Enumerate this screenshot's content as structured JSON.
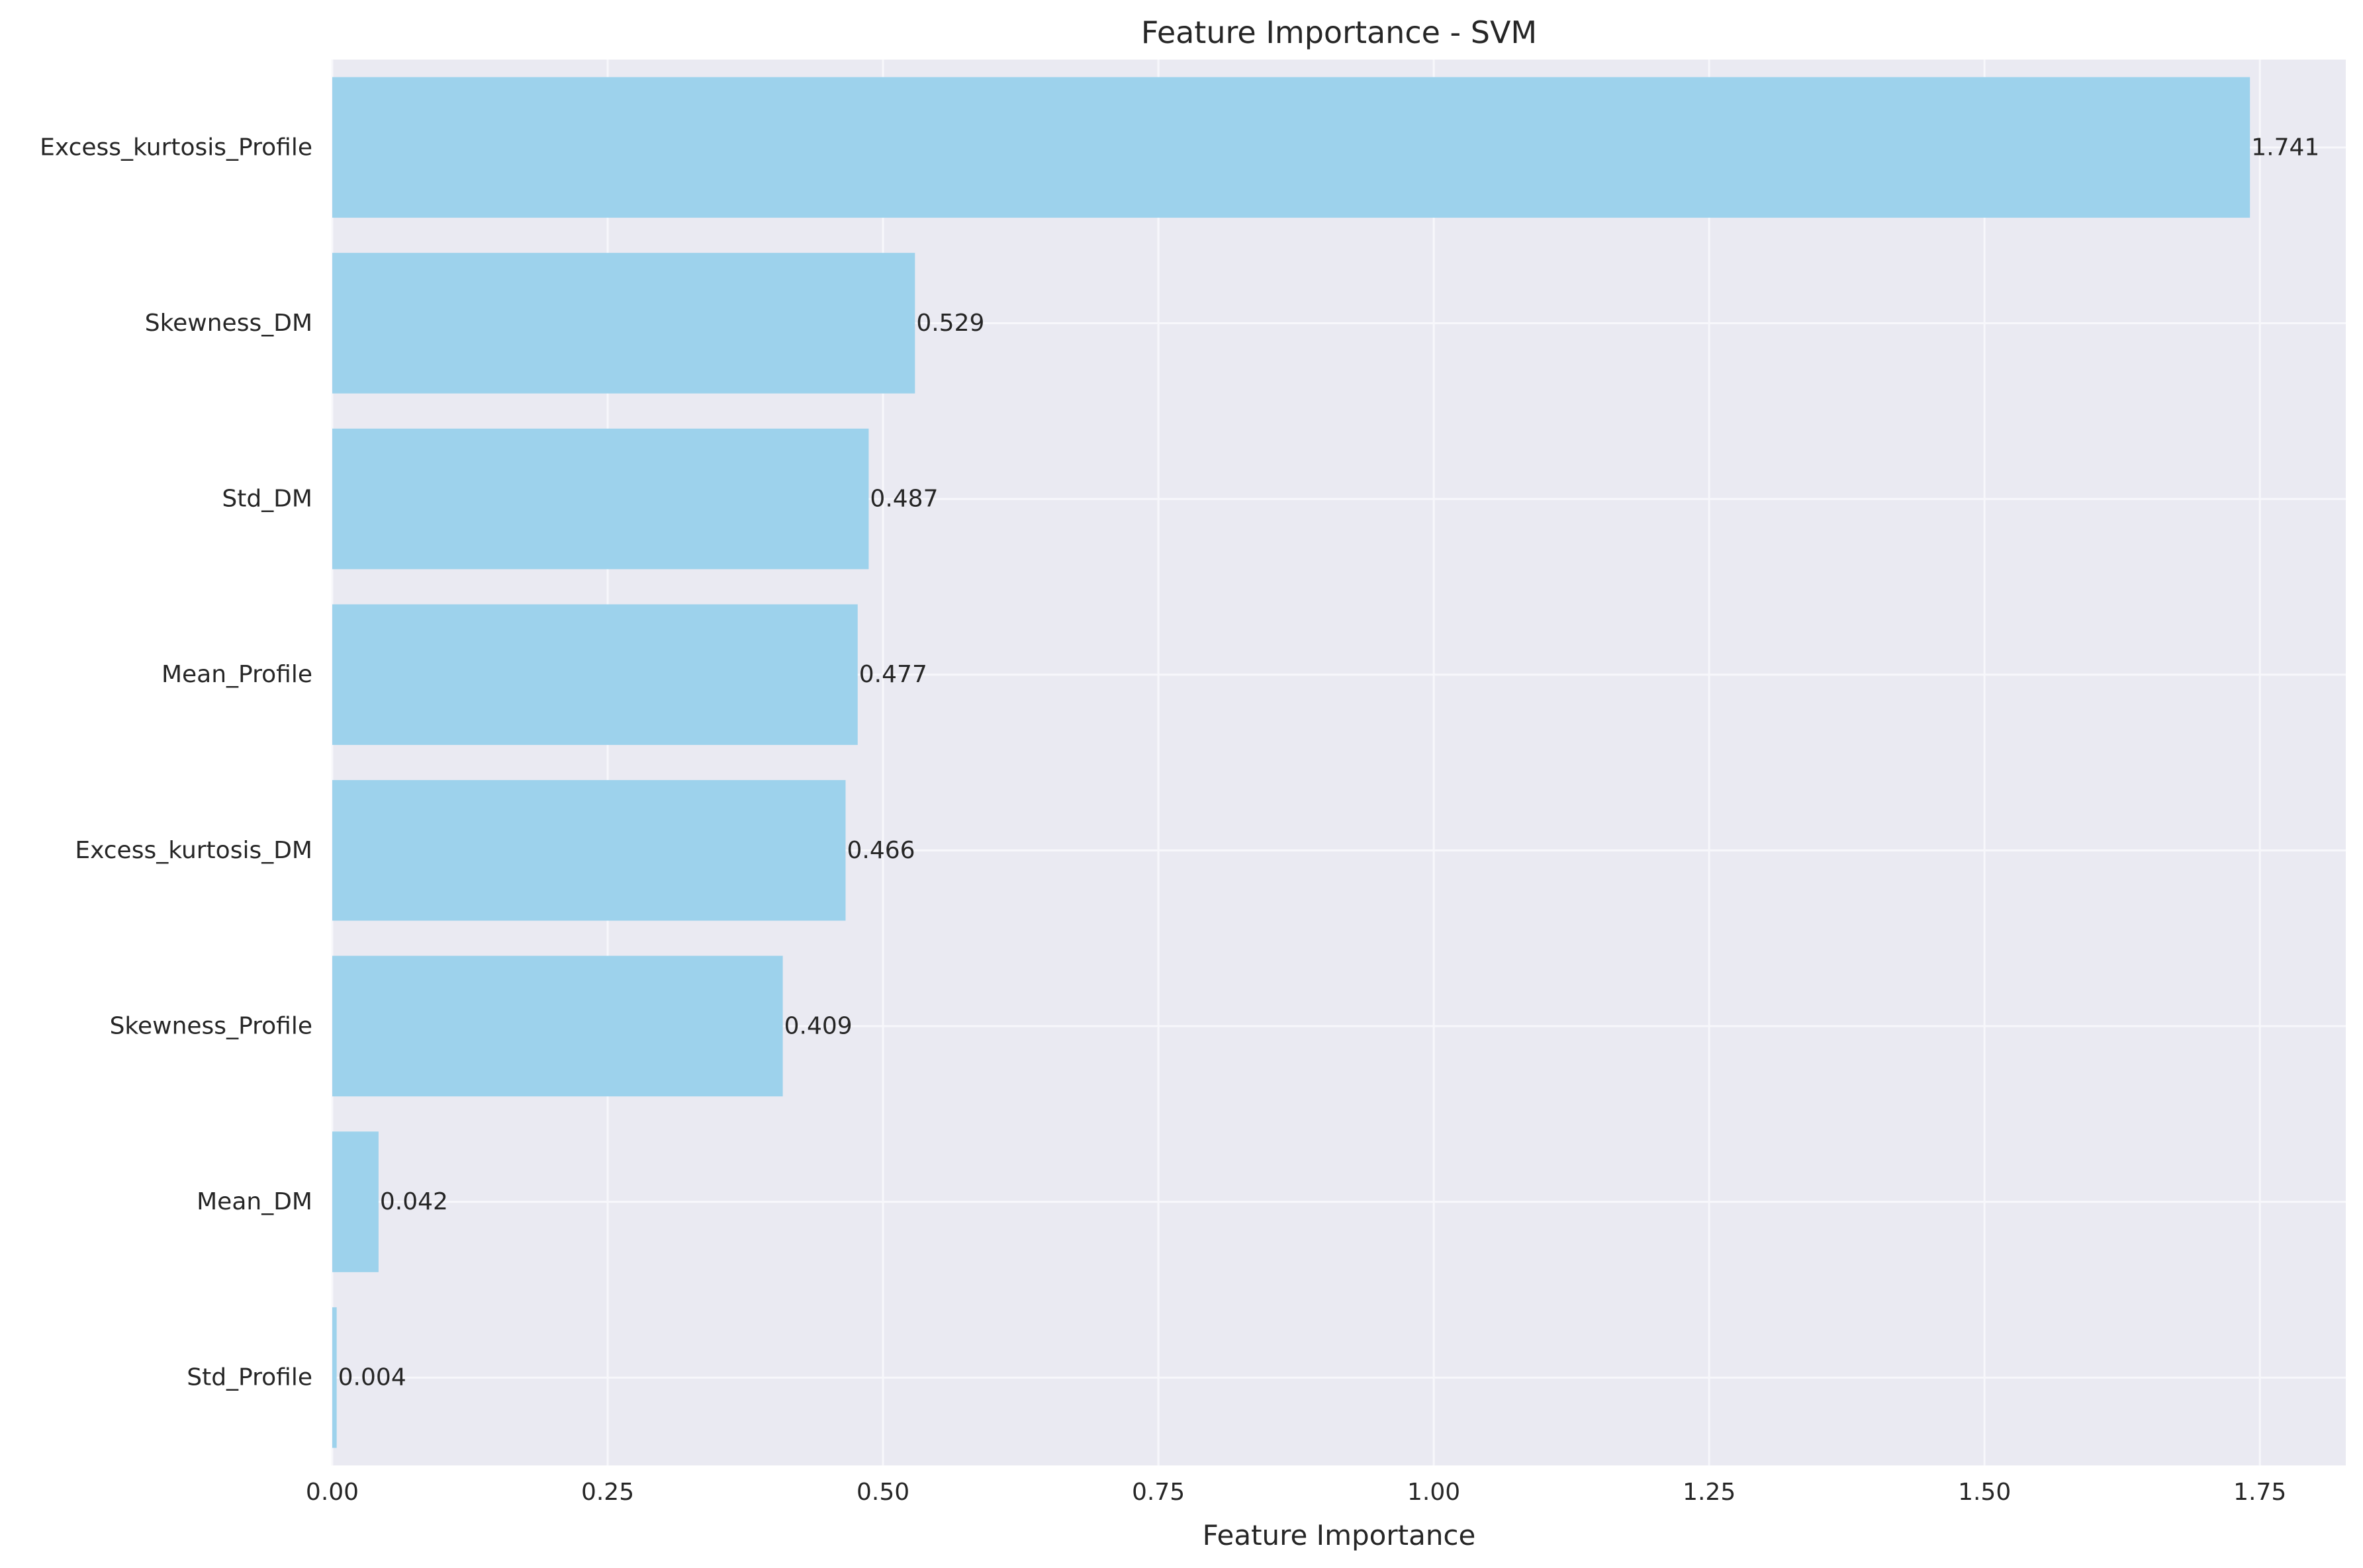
{
  "chart_data": {
    "type": "bar",
    "orientation": "horizontal",
    "title": "Feature Importance - SVM",
    "xlabel": "Feature Importance",
    "ylabel": "",
    "categories": [
      "Excess_kurtosis_Profile",
      "Skewness_DM",
      "Std_DM",
      "Mean_Profile",
      "Excess_kurtosis_DM",
      "Skewness_Profile",
      "Mean_DM",
      "Std_Profile"
    ],
    "values": [
      1.741,
      0.529,
      0.487,
      0.477,
      0.466,
      0.409,
      0.042,
      0.004
    ],
    "value_labels": [
      "1.741",
      "0.529",
      "0.487",
      "0.477",
      "0.466",
      "0.409",
      "0.042",
      "0.004"
    ],
    "xlim": [
      0,
      1.828
    ],
    "xticks": [
      0.0,
      0.25,
      0.5,
      0.75,
      1.0,
      1.25,
      1.5,
      1.75
    ],
    "xtick_labels": [
      "0.00",
      "0.25",
      "0.50",
      "0.75",
      "1.00",
      "1.25",
      "1.50",
      "1.75"
    ],
    "grid": true,
    "colors": {
      "bar": "#9dd2ec",
      "plot_background": "#eaeaf2",
      "grid": "#f7f7fb",
      "text": "#262626"
    }
  }
}
